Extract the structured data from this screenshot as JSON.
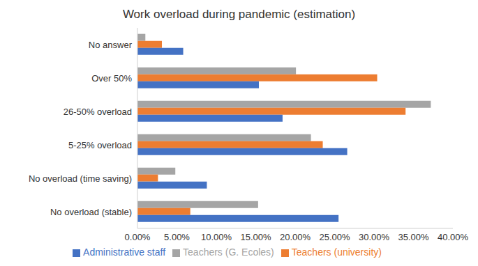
{
  "chart_data": {
    "type": "bar",
    "title": "Work overload during pandemic (estimation)",
    "orientation": "horizontal",
    "categories": [
      "No answer",
      "Over 50%",
      "26-50% overload",
      "5-25% overload",
      "No overload  (time saving)",
      "No overload  (stable)"
    ],
    "series": [
      {
        "name": "Teachers (G. Ecoles)",
        "color": "#a5a5a5",
        "values": [
          1.0,
          20.1,
          37.2,
          22.0,
          4.8,
          15.3
        ]
      },
      {
        "name": "Teachers (university)",
        "color": "#ed7d31",
        "values": [
          3.1,
          30.4,
          34.0,
          23.5,
          2.6,
          6.7
        ]
      },
      {
        "name": "Administrative staff",
        "color": "#4472c4",
        "values": [
          5.8,
          15.4,
          18.4,
          26.6,
          8.8,
          25.5
        ]
      }
    ],
    "xlim": [
      0,
      40
    ],
    "xticks": [
      {
        "value": 0,
        "label": "0.00%"
      },
      {
        "value": 5,
        "label": "5.00%"
      },
      {
        "value": 10,
        "label": "10.00%"
      },
      {
        "value": 15,
        "label": "15.00%"
      },
      {
        "value": 20,
        "label": "20.00%"
      },
      {
        "value": 25,
        "label": "25.00%"
      },
      {
        "value": 30,
        "label": "30.00%"
      },
      {
        "value": 35,
        "label": "35.00%"
      },
      {
        "value": 40,
        "label": "40.00%"
      }
    ],
    "grid": false,
    "legend": "bottom"
  }
}
